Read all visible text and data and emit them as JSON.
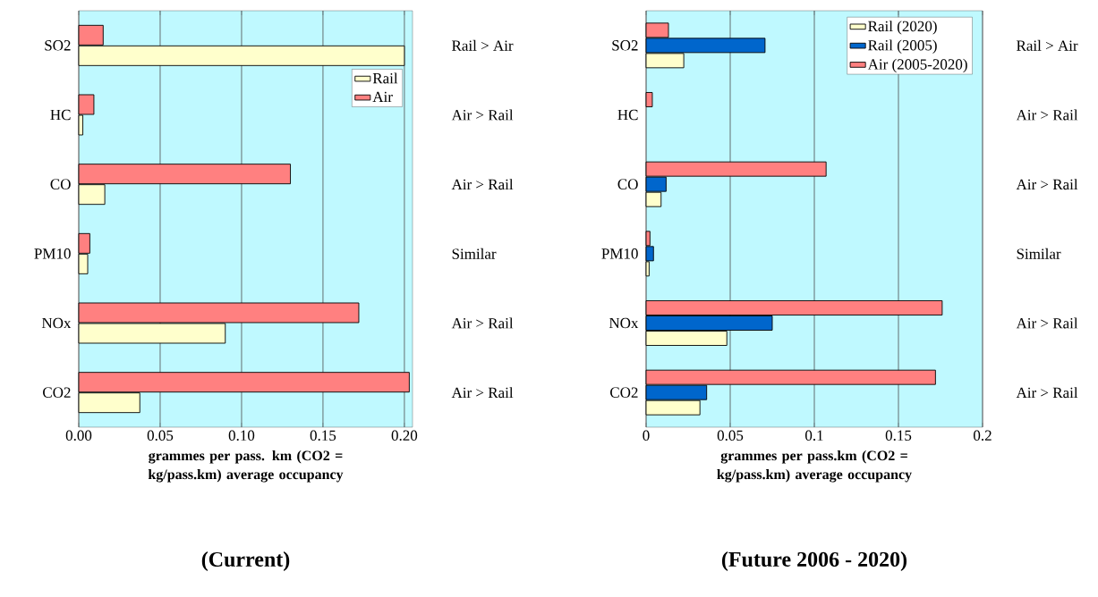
{
  "chart_data": [
    {
      "type": "bar",
      "orientation": "horizontal",
      "title": "(Current)",
      "xlabel": "grammes per pass. km (CO2 = kg/pass.km) average occupancy",
      "categories": [
        "SO2",
        "HC",
        "CO",
        "PM10",
        "NOx",
        "CO2"
      ],
      "series": [
        {
          "name": "Rail",
          "color": "#ffffcc",
          "values": [
            0.2,
            0.0025,
            0.016,
            0.0055,
            0.09,
            0.0375
          ]
        },
        {
          "name": "Air",
          "color": "#ff8080",
          "values": [
            0.015,
            0.0093,
            0.13,
            0.0068,
            0.172,
            0.203
          ]
        }
      ],
      "xlim": [
        0,
        0.205
      ],
      "xticks": [
        {
          "value": 0,
          "label": "0.00"
        },
        {
          "value": 0.05,
          "label": "0.05"
        },
        {
          "value": 0.1,
          "label": "0.10"
        },
        {
          "value": 0.15,
          "label": "0.15"
        },
        {
          "value": 0.2,
          "label": "0.20"
        }
      ],
      "grid": "x",
      "legend": "top right",
      "annotations": [
        "Rail > Air",
        "Air > Rail",
        "Air > Rail",
        "Similar",
        "Air > Rail",
        "Air > Rail"
      ]
    },
    {
      "type": "bar",
      "orientation": "horizontal",
      "title": "(Future 2006 - 2020)",
      "xlabel": "grammes per pass.km (CO2 = kg/pass.km) average occupancy",
      "categories": [
        "SO2",
        "HC",
        "CO",
        "PM10",
        "NOx",
        "CO2"
      ],
      "series": [
        {
          "name": "Rail (2020)",
          "color": "#ffffcc",
          "values": [
            0.0224,
            null,
            0.0089,
            0.0018,
            0.048,
            0.032
          ]
        },
        {
          "name": "Rail (2005)",
          "color": "#0066cc",
          "values": [
            0.0707,
            null,
            0.0119,
            0.0044,
            0.075,
            0.036
          ]
        },
        {
          "name": "Air (2005-2020)",
          "color": "#ff8080",
          "values": [
            0.0133,
            0.0037,
            0.107,
            0.0023,
            0.176,
            0.172
          ]
        }
      ],
      "xlim": [
        0,
        0.2
      ],
      "xticks": [
        0,
        0.05,
        0.1,
        0.15,
        0.2
      ],
      "grid": "x",
      "legend": "top right",
      "annotations": [
        "Rail > Air",
        "Air > Rail",
        "Air > Rail",
        "Similar",
        "Air > Rail",
        "Air > Rail"
      ]
    }
  ]
}
